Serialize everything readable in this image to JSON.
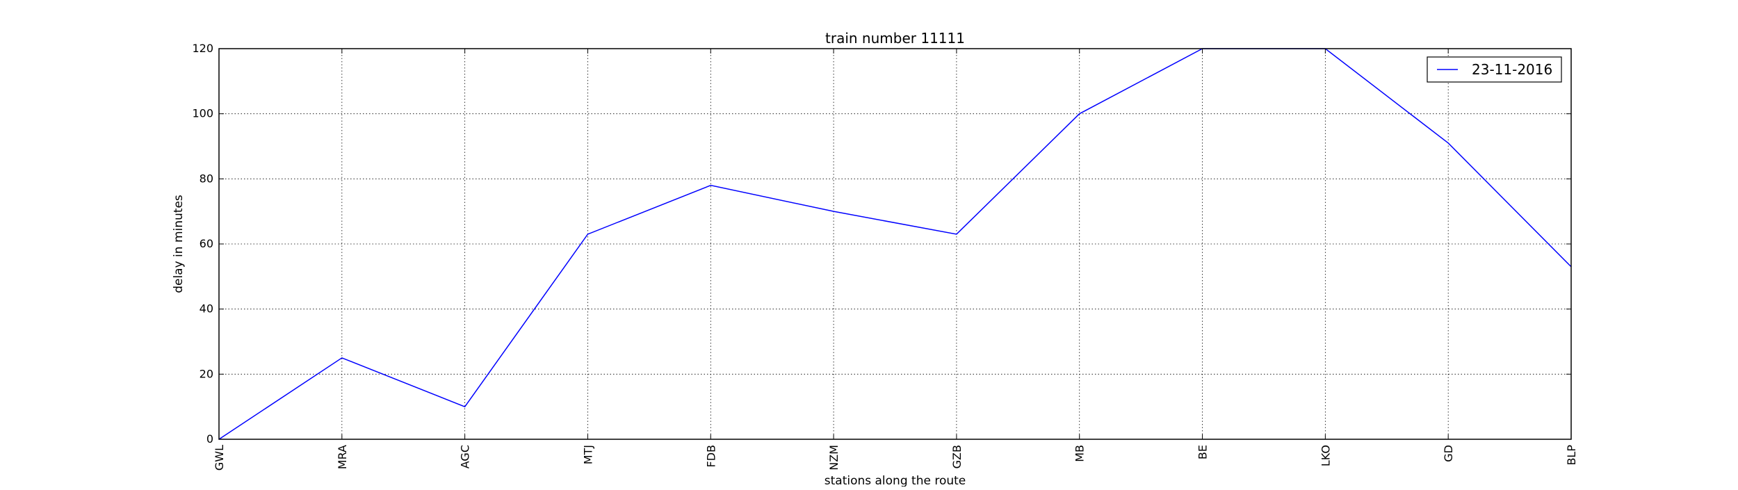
{
  "chart_data": {
    "type": "line",
    "title": "train number 11111",
    "xlabel": "stations along the route",
    "ylabel": "delay in minutes",
    "categories": [
      "GWL",
      "MRA",
      "AGC",
      "MTJ",
      "FDB",
      "NZM",
      "GZB",
      "MB",
      "BE",
      "LKO",
      "GD",
      "BLP"
    ],
    "series": [
      {
        "name": "23-11-2016",
        "color": "#0000ff",
        "values": [
          0,
          25,
          10,
          63,
          78,
          70,
          63,
          100,
          120,
          120,
          91,
          53
        ]
      }
    ],
    "ylim": [
      0,
      120
    ],
    "yticks": [
      0,
      20,
      40,
      60,
      80,
      100,
      120
    ],
    "grid": true,
    "grid_style": "dotted",
    "legend_position": "top-right"
  }
}
